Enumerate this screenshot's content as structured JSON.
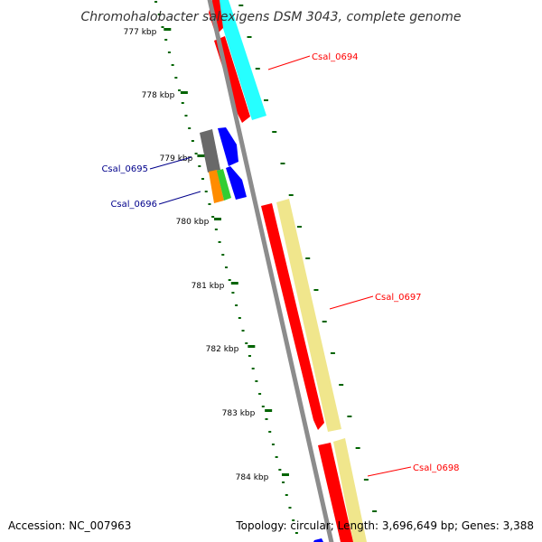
{
  "title": "Chromohalobacter salexigens DSM 3043, complete genome",
  "footer": {
    "accession": "Accession: NC_007963",
    "summary": "Topology: circular; Length: 3,696,649 bp; Genes: 3,388"
  },
  "colors": {
    "backbone": "#8c8c8c",
    "tick": "#006400",
    "forward_cds": "#ff0000",
    "reverse_cds": "#0000ff",
    "cyan_feature": "#00ffff",
    "khaki_feature": "#f0e68c",
    "gray_feature": "#696969",
    "orange_feature": "#ff8c00",
    "green_feature": "#32cd32",
    "label_red": "#ff0000",
    "label_blue": "#00008b"
  },
  "scale": {
    "labels": [
      "777 kbp",
      "778 kbp",
      "779 kbp",
      "780 kbp",
      "781 kbp",
      "782 kbp",
      "783 kbp",
      "784 kbp"
    ]
  },
  "genes": [
    {
      "label": "Csal_0694",
      "color": "#ff0000"
    },
    {
      "label": "Csal_0695",
      "color": "#00008b"
    },
    {
      "label": "Csal_0696",
      "color": "#00008b"
    },
    {
      "label": "Csal_0697",
      "color": "#ff0000"
    },
    {
      "label": "Csal_0698",
      "color": "#ff0000"
    }
  ]
}
